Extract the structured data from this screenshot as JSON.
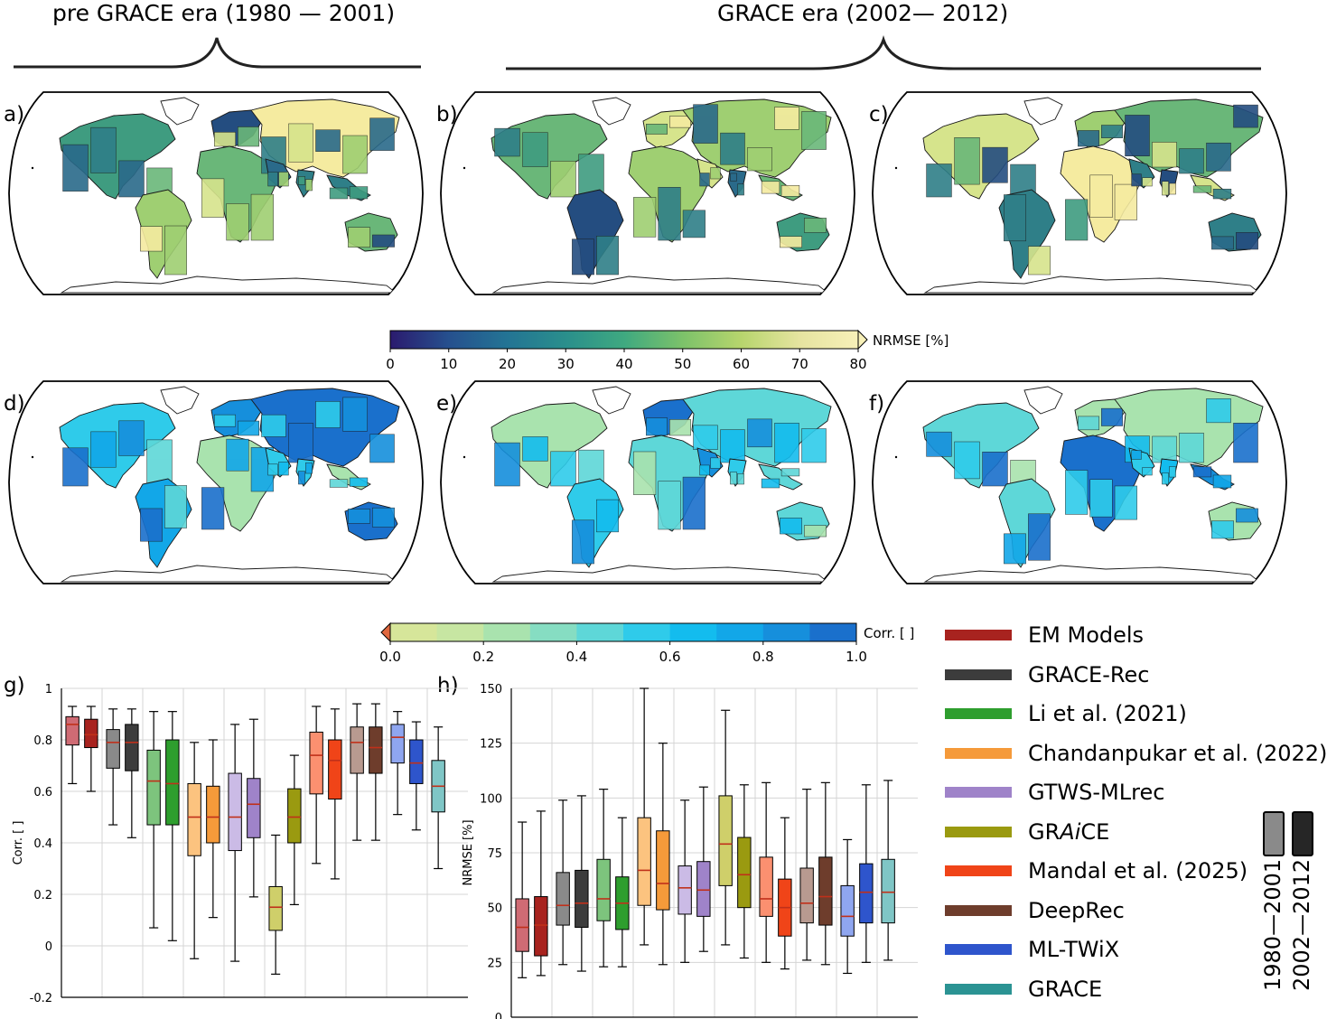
{
  "eras": {
    "pre": "pre GRACE era (1980 — 2001)",
    "grace": "GRACE era (2002— 2012)"
  },
  "panels": {
    "a": "a)",
    "b": "b)",
    "c": "c)",
    "d": "d)",
    "e": "e)",
    "f": "f)",
    "g": "g)",
    "h": "h)"
  },
  "colorbars": {
    "nrmse": {
      "label": "NRMSE [%]",
      "ticks": [
        "0",
        "10",
        "20",
        "30",
        "40",
        "50",
        "60",
        "70",
        "80"
      ],
      "colors": [
        "#2b1b6e",
        "#26508e",
        "#237494",
        "#2a8f8c",
        "#3fa980",
        "#7cc26a",
        "#b7d56d",
        "#e6e4a0",
        "#f7f0b8"
      ]
    },
    "corr": {
      "label": "Corr. [ ]",
      "ticks": [
        "0.0",
        "0.2",
        "0.4",
        "0.6",
        "0.8",
        "1.0"
      ],
      "colors": [
        "#d6e69a",
        "#c7e6a2",
        "#a9e3ae",
        "#86ddc2",
        "#5ed7d8",
        "#2fcbea",
        "#13bcee",
        "#12a7e8",
        "#168fdc",
        "#1a70cc"
      ],
      "under_color": "#e0683f"
    }
  },
  "maps": {
    "nrmse_palette": [
      "#f5eba0",
      "#d6e48c",
      "#9fcf72",
      "#6ab779",
      "#3f9c80",
      "#2f7f88",
      "#2a6a8a",
      "#244d80"
    ],
    "corr_palette": [
      "#2fcbea",
      "#13bcee",
      "#12a7e8",
      "#168fdc",
      "#1a70cc",
      "#5ed7d8",
      "#a9e3ae"
    ]
  },
  "legend": {
    "items": [
      {
        "label": "EM Models",
        "color": "#a8231f"
      },
      {
        "label": "GRACE-Rec",
        "color": "#3c3c3c"
      },
      {
        "label": "Li et al. (2021)",
        "color": "#2e9e2e"
      },
      {
        "label": "Chandanpukar et al. (2022)",
        "color": "#f59a3a"
      },
      {
        "label": "GTWS-MLrec",
        "color": "#9f83c9"
      },
      {
        "label": "GRAiCE",
        "color": "#9a9a10"
      },
      {
        "label": "Mandal et al. (2025)",
        "color": "#f04418"
      },
      {
        "label": "DeepRec",
        "color": "#6e3d2c"
      },
      {
        "label": "ML-TWiX",
        "color": "#2e55cc"
      },
      {
        "label": "GRACE",
        "color": "#2b9393"
      }
    ],
    "periods": [
      {
        "label": "1980—2001",
        "color": "#8a8a8a"
      },
      {
        "label": "2002—2012",
        "color": "#262626"
      }
    ]
  },
  "chart_data": [
    {
      "type": "box",
      "panel": "g)",
      "ylabel": "Corr. [ ]",
      "ylim": [
        -0.2,
        1.0
      ],
      "yticks": [
        "1",
        "0.8",
        "0.6",
        "0.4",
        "0.2",
        "0",
        "-0.2"
      ],
      "yticks_values": [
        1,
        0.8,
        0.6,
        0.4,
        0.2,
        0,
        -0.2
      ],
      "boxes": [
        {
          "model": "EM Models",
          "period": "1980—2001",
          "color": "#cf6b74",
          "whislo": 0.63,
          "q1": 0.78,
          "med": 0.86,
          "q3": 0.89,
          "whishi": 0.93
        },
        {
          "model": "EM Models",
          "period": "2002—2012",
          "color": "#a8231f",
          "whislo": 0.6,
          "q1": 0.77,
          "med": 0.82,
          "q3": 0.88,
          "whishi": 0.93
        },
        {
          "model": "GRACE-Rec",
          "period": "1980—2001",
          "color": "#8a8a8a",
          "whislo": 0.47,
          "q1": 0.69,
          "med": 0.79,
          "q3": 0.84,
          "whishi": 0.92
        },
        {
          "model": "GRACE-Rec",
          "period": "2002—2012",
          "color": "#3c3c3c",
          "whislo": 0.42,
          "q1": 0.68,
          "med": 0.79,
          "q3": 0.86,
          "whishi": 0.92
        },
        {
          "model": "Li et al. (2021)",
          "period": "1980—2001",
          "color": "#7dc47d",
          "whislo": 0.07,
          "q1": 0.47,
          "med": 0.64,
          "q3": 0.76,
          "whishi": 0.91
        },
        {
          "model": "Li et al. (2021)",
          "period": "2002—2012",
          "color": "#2e9e2e",
          "whislo": 0.02,
          "q1": 0.47,
          "med": 0.63,
          "q3": 0.8,
          "whishi": 0.91
        },
        {
          "model": "Chandanpukar et al. (2022)",
          "period": "1980—2001",
          "color": "#fcc37f",
          "whislo": -0.05,
          "q1": 0.35,
          "med": 0.5,
          "q3": 0.63,
          "whishi": 0.79
        },
        {
          "model": "Chandanpukar et al. (2022)",
          "period": "2002—2012",
          "color": "#f59a3a",
          "whislo": 0.11,
          "q1": 0.4,
          "med": 0.5,
          "q3": 0.62,
          "whishi": 0.8
        },
        {
          "model": "GTWS-MLrec",
          "period": "1980—2001",
          "color": "#cbbbe6",
          "whislo": -0.06,
          "q1": 0.37,
          "med": 0.5,
          "q3": 0.67,
          "whishi": 0.86
        },
        {
          "model": "GTWS-MLrec",
          "period": "2002—2012",
          "color": "#9f83c9",
          "whislo": 0.19,
          "q1": 0.42,
          "med": 0.55,
          "q3": 0.65,
          "whishi": 0.88
        },
        {
          "model": "GRAiCE",
          "period": "1980—2001",
          "color": "#cfcf6a",
          "whislo": -0.11,
          "q1": 0.06,
          "med": 0.15,
          "q3": 0.23,
          "whishi": 0.43
        },
        {
          "model": "GRAiCE",
          "period": "2002—2012",
          "color": "#9a9a10",
          "whislo": 0.16,
          "q1": 0.4,
          "med": 0.5,
          "q3": 0.61,
          "whishi": 0.74
        },
        {
          "model": "Mandal et al. (2025)",
          "period": "1980—2001",
          "color": "#fb9070",
          "whislo": 0.32,
          "q1": 0.59,
          "med": 0.74,
          "q3": 0.83,
          "whishi": 0.93
        },
        {
          "model": "Mandal et al. (2025)",
          "period": "2002—2012",
          "color": "#f04418",
          "whislo": 0.26,
          "q1": 0.57,
          "med": 0.72,
          "q3": 0.8,
          "whishi": 0.92
        },
        {
          "model": "DeepRec",
          "period": "1980—2001",
          "color": "#b89a90",
          "whislo": 0.41,
          "q1": 0.67,
          "med": 0.79,
          "q3": 0.85,
          "whishi": 0.94
        },
        {
          "model": "DeepRec",
          "period": "2002—2012",
          "color": "#6e3d2c",
          "whislo": 0.41,
          "q1": 0.67,
          "med": 0.77,
          "q3": 0.85,
          "whishi": 0.94
        },
        {
          "model": "ML-TWiX",
          "period": "1980—2001",
          "color": "#8fa6f0",
          "whislo": 0.51,
          "q1": 0.71,
          "med": 0.81,
          "q3": 0.86,
          "whishi": 0.91
        },
        {
          "model": "ML-TWiX",
          "period": "2002—2012",
          "color": "#2e55cc",
          "whislo": 0.45,
          "q1": 0.63,
          "med": 0.71,
          "q3": 0.8,
          "whishi": 0.87
        },
        {
          "model": "GRACE",
          "period": "2002—2012",
          "color": "#7fc6c6",
          "whislo": 0.3,
          "q1": 0.52,
          "med": 0.62,
          "q3": 0.72,
          "whishi": 0.85
        }
      ]
    },
    {
      "type": "box",
      "panel": "h)",
      "ylabel": "NRMSE [%]",
      "ylim": [
        0,
        150
      ],
      "yticks": [
        "150",
        "125",
        "100",
        "75",
        "50",
        "25",
        "0"
      ],
      "yticks_values": [
        150,
        125,
        100,
        75,
        50,
        25,
        0
      ],
      "boxes": [
        {
          "model": "EM Models",
          "period": "1980—2001",
          "color": "#cf6b74",
          "whislo": 18,
          "q1": 30,
          "med": 41,
          "q3": 54,
          "whishi": 89
        },
        {
          "model": "EM Models",
          "period": "2002—2012",
          "color": "#a8231f",
          "whislo": 19,
          "q1": 28,
          "med": 42,
          "q3": 55,
          "whishi": 94
        },
        {
          "model": "GRACE-Rec",
          "period": "1980—2001",
          "color": "#8a8a8a",
          "whislo": 24,
          "q1": 42,
          "med": 51,
          "q3": 66,
          "whishi": 99
        },
        {
          "model": "GRACE-Rec",
          "period": "2002—2012",
          "color": "#3c3c3c",
          "whislo": 21,
          "q1": 41,
          "med": 52,
          "q3": 67,
          "whishi": 101
        },
        {
          "model": "Li et al. (2021)",
          "period": "1980—2001",
          "color": "#7dc47d",
          "whislo": 23,
          "q1": 44,
          "med": 54,
          "q3": 72,
          "whishi": 104
        },
        {
          "model": "Li et al. (2021)",
          "period": "2002—2012",
          "color": "#2e9e2e",
          "whislo": 23,
          "q1": 40,
          "med": 52,
          "q3": 64,
          "whishi": 91
        },
        {
          "model": "Chandanpukar et al. (2022)",
          "period": "1980—2001",
          "color": "#fcc37f",
          "whislo": 33,
          "q1": 51,
          "med": 67,
          "q3": 91,
          "whishi": 150
        },
        {
          "model": "Chandanpukar et al. (2022)",
          "period": "2002—2012",
          "color": "#f59a3a",
          "whislo": 24,
          "q1": 49,
          "med": 61,
          "q3": 85,
          "whishi": 125
        },
        {
          "model": "GTWS-MLrec",
          "period": "1980—2001",
          "color": "#cbbbe6",
          "whislo": 25,
          "q1": 47,
          "med": 59,
          "q3": 69,
          "whishi": 99
        },
        {
          "model": "GTWS-MLrec",
          "period": "2002—2012",
          "color": "#9f83c9",
          "whislo": 30,
          "q1": 46,
          "med": 58,
          "q3": 71,
          "whishi": 105
        },
        {
          "model": "GRAiCE",
          "period": "1980—2001",
          "color": "#cfcf6a",
          "whislo": 33,
          "q1": 60,
          "med": 79,
          "q3": 101,
          "whishi": 140
        },
        {
          "model": "GRAiCE",
          "period": "2002—2012",
          "color": "#9a9a10",
          "whislo": 27,
          "q1": 50,
          "med": 65,
          "q3": 82,
          "whishi": 106
        },
        {
          "model": "Mandal et al. (2025)",
          "period": "1980—2001",
          "color": "#fb9070",
          "whislo": 25,
          "q1": 46,
          "med": 54,
          "q3": 73,
          "whishi": 107
        },
        {
          "model": "Mandal et al. (2025)",
          "period": "2002—2012",
          "color": "#f04418",
          "whislo": 22,
          "q1": 37,
          "med": 50,
          "q3": 63,
          "whishi": 91
        },
        {
          "model": "DeepRec",
          "period": "1980—2001",
          "color": "#b89a90",
          "whislo": 26,
          "q1": 43,
          "med": 52,
          "q3": 68,
          "whishi": 104
        },
        {
          "model": "DeepRec",
          "period": "2002—2012",
          "color": "#6e3d2c",
          "whislo": 24,
          "q1": 42,
          "med": 55,
          "q3": 73,
          "whishi": 107
        },
        {
          "model": "ML-TWiX",
          "period": "1980—2001",
          "color": "#8fa6f0",
          "whislo": 20,
          "q1": 37,
          "med": 46,
          "q3": 60,
          "whishi": 81
        },
        {
          "model": "ML-TWiX",
          "period": "2002—2012",
          "color": "#2e55cc",
          "whislo": 25,
          "q1": 43,
          "med": 57,
          "q3": 70,
          "whishi": 106
        },
        {
          "model": "GRACE",
          "period": "2002—2012",
          "color": "#7fc6c6",
          "whislo": 26,
          "q1": 43,
          "med": 57,
          "q3": 72,
          "whishi": 108
        }
      ]
    }
  ]
}
